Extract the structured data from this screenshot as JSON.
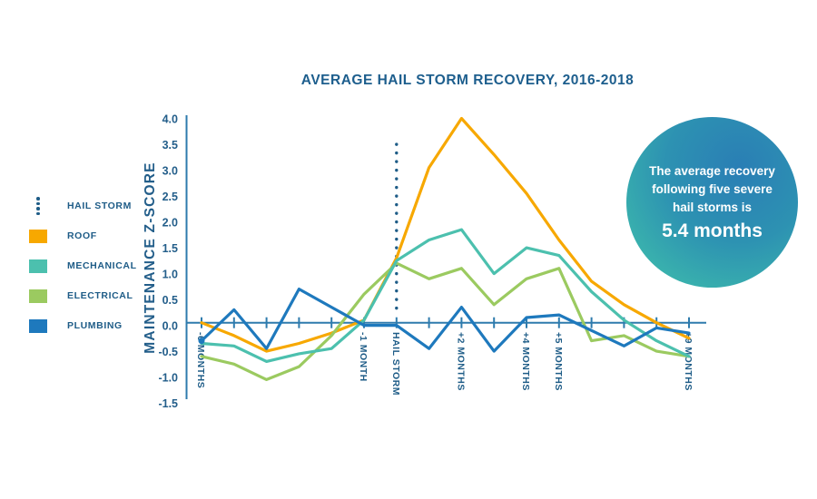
{
  "title": "AVERAGE HAIL STORM RECOVERY, 2016-2018",
  "colors": {
    "navy_text": "#1e5c87",
    "axis_blue": "#2e7bad",
    "tick_label_blue": "#235e8a",
    "roof": "#f7a800",
    "mechanical": "#4cc0ae",
    "electrical": "#9bca60",
    "plumbing": "#1e79bd"
  },
  "legend": {
    "items": [
      {
        "label": "HAIL STORM",
        "type": "dotted-line",
        "color": "#1e5c87"
      },
      {
        "label": "ROOF",
        "type": "swatch",
        "color": "#f7a800"
      },
      {
        "label": "MECHANICAL",
        "type": "swatch",
        "color": "#4cc0ae"
      },
      {
        "label": "ELECTRICAL",
        "type": "swatch",
        "color": "#9bca60"
      },
      {
        "label": "PLUMBING",
        "type": "swatch",
        "color": "#1e79bd"
      }
    ]
  },
  "chart_data": {
    "type": "line",
    "title": "AVERAGE HAIL STORM RECOVERY, 2016-2018",
    "ylabel": "MAINTENANCE Z-SCORE",
    "xlabel": "",
    "ylim": [
      -1.5,
      4.0
    ],
    "grid": false,
    "legend_position": "left",
    "y_ticks": [
      "4.0",
      "3.5",
      "3.0",
      "2.5",
      "2.0",
      "1.5",
      "1.0",
      "0.5",
      "0.0",
      "-0.5",
      "-1.0",
      "-1.5"
    ],
    "x_months": [
      -6,
      -5,
      -4,
      -3,
      -2,
      -1,
      0,
      1,
      2,
      3,
      4,
      5,
      6,
      7,
      8,
      9
    ],
    "x_labeled_ticks": [
      {
        "month": -6,
        "label": "-6 MONTHS"
      },
      {
        "month": -1,
        "label": "-1 MONTH"
      },
      {
        "month": 0,
        "label": "HAIL STORM"
      },
      {
        "month": 2,
        "label": "+2 MONTHS"
      },
      {
        "month": 4,
        "label": "+4 MONTHS"
      },
      {
        "month": 5,
        "label": "+5 MONTHS"
      },
      {
        "month": 9,
        "label": "+9 MONTHS"
      }
    ],
    "event_line": {
      "label": "HAIL STORM",
      "month": 0,
      "top_value": 3.45,
      "bottom_value": 0.12,
      "color": "#1e5c87"
    },
    "series": [
      {
        "name": "ROOF",
        "color": "#f7a800",
        "values": [
          0.0,
          -0.25,
          -0.55,
          -0.4,
          -0.2,
          0.05,
          1.25,
          3.0,
          3.95,
          3.25,
          2.5,
          1.6,
          0.8,
          0.35,
          0.0,
          -0.3
        ]
      },
      {
        "name": "MECHANICAL",
        "color": "#4cc0ae",
        "values": [
          -0.4,
          -0.45,
          -0.75,
          -0.6,
          -0.5,
          0.05,
          1.2,
          1.6,
          1.8,
          0.95,
          1.45,
          1.3,
          0.6,
          0.05,
          -0.35,
          -0.65
        ]
      },
      {
        "name": "ELECTRICAL",
        "color": "#9bca60",
        "values": [
          -0.65,
          -0.8,
          -1.1,
          -0.85,
          -0.25,
          0.55,
          1.15,
          0.85,
          1.05,
          0.35,
          0.85,
          1.05,
          -0.35,
          -0.25,
          -0.55,
          -0.65
        ]
      },
      {
        "name": "PLUMBING",
        "color": "#1e79bd",
        "start_dot": true,
        "values": [
          -0.35,
          0.25,
          -0.5,
          0.65,
          0.3,
          -0.05,
          -0.05,
          -0.5,
          0.3,
          -0.55,
          0.1,
          0.15,
          -0.15,
          -0.45,
          -0.1,
          -0.2
        ]
      }
    ]
  },
  "badge": {
    "lines": [
      "The average recovery",
      "following five severe",
      "hail storms is"
    ],
    "value": "5.4 months",
    "gradient_inner": "#2a7eb5",
    "gradient_outer": "#3fc0ab"
  }
}
